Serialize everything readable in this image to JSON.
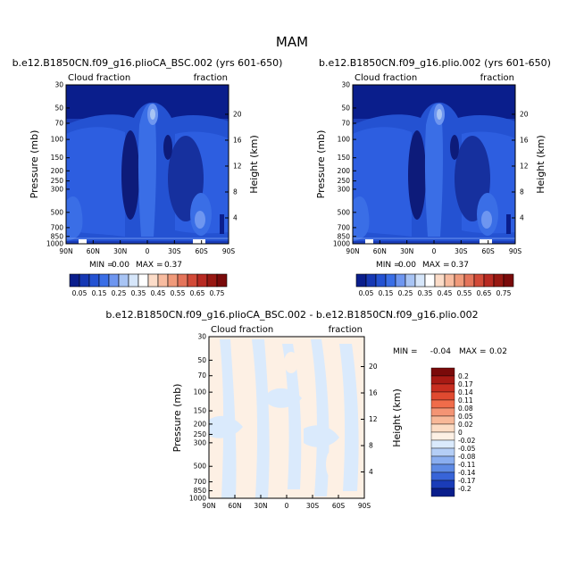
{
  "season": "MAM",
  "panels": [
    {
      "title": "b.e12.B1850CN.f09_g16.plioCA_BSC.002 (yrs 601-650)",
      "left_label": "Cloud fraction",
      "right_label": "fraction",
      "ylabel": "Pressure (mb)",
      "y2label": "Height (km)",
      "stats": {
        "min_label": "MIN =",
        "min": "0.00",
        "max_label": "MAX =",
        "max": "0.37"
      }
    },
    {
      "title": "b.e12.B1850CN.f09_g16.plio.002 (yrs 601-650)",
      "left_label": "Cloud fraction",
      "right_label": "fraction",
      "ylabel": "Pressure (mb)",
      "y2label": "Height (km)",
      "stats": {
        "min_label": "MIN =",
        "min": "0.00",
        "max_label": "MAX =",
        "max": "0.37"
      }
    },
    {
      "title": "b.e12.B1850CN.f09_g16.plioCA_BSC.002 - b.e12.B1850CN.f09_g16.plio.002",
      "left_label": "Cloud fraction",
      "right_label": "fraction",
      "ylabel": "Pressure (mb)",
      "y2label": "Height (km)",
      "stats": {
        "min_label": "MIN =",
        "min": "-0.04",
        "max_label": "MAX =",
        "max": "0.02"
      }
    }
  ],
  "chart_data": {
    "type": "heatmap",
    "x_ticks": [
      "90N",
      "60N",
      "30N",
      "0",
      "30S",
      "60S",
      "90S"
    ],
    "x_values": [
      90,
      60,
      30,
      0,
      -30,
      -60,
      -90
    ],
    "y_pressure_ticks": [
      "30",
      "50",
      "70",
      "100",
      "150",
      "200",
      "250",
      "300",
      "500",
      "700",
      "850",
      "1000"
    ],
    "y_pressure_values": [
      30,
      50,
      70,
      100,
      150,
      200,
      250,
      300,
      500,
      700,
      850,
      1000
    ],
    "y_height_ticks": [
      "20",
      "16",
      "12",
      "8",
      "4"
    ],
    "y_height_values": [
      20,
      16,
      12,
      8,
      4
    ],
    "ylim_pressure": [
      1000,
      30
    ],
    "colorbar_field": {
      "labels": [
        "0.05",
        "0.15",
        "0.25",
        "0.35",
        "0.45",
        "0.55",
        "0.65",
        "0.75"
      ],
      "colors": [
        "#0a1e8c",
        "#1638b4",
        "#2452d2",
        "#3a6ee6",
        "#6e96f0",
        "#a8c4f4",
        "#d6e6fa",
        "#ffffff",
        "#fcdcc8",
        "#f8bca0",
        "#f09a7a",
        "#e4745a",
        "#d24a38",
        "#b82a22",
        "#981812",
        "#7a0a0a"
      ]
    },
    "colorbar_diff": {
      "labels": [
        "0.2",
        "0.17",
        "0.14",
        "0.11",
        "0.08",
        "0.05",
        "0.02",
        "0",
        "-0.02",
        "-0.05",
        "-0.08",
        "-0.11",
        "-0.14",
        "-0.17",
        "-0.2"
      ],
      "colors": [
        "#7a0a0a",
        "#a81a14",
        "#c82e20",
        "#e04a30",
        "#f06c4a",
        "#f49474",
        "#f8b898",
        "#fcdcc4",
        "#fdf0e4",
        "#daeafc",
        "#b4cef6",
        "#8aaef0",
        "#5e8ae4",
        "#3864d8",
        "#1a3cb8",
        "#0a1e8c"
      ]
    },
    "field_max": 0.37,
    "field_min": 0.0,
    "diff_min": -0.04,
    "diff_max": 0.02
  }
}
